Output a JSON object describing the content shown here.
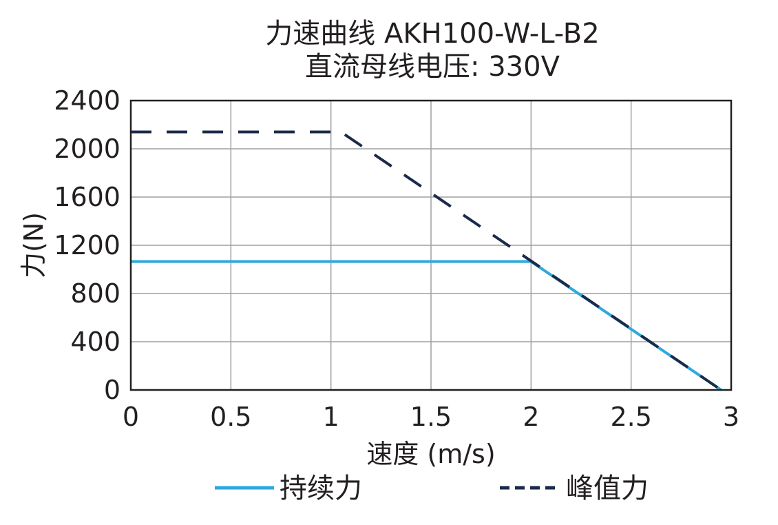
{
  "chart_data": {
    "type": "line",
    "title": "力速曲线 AKH100-W-L-B2",
    "subtitle": "直流母线电压: 330V",
    "xlabel": "速度 (m/s)",
    "ylabel": "力(N)",
    "xlim": [
      0,
      3
    ],
    "ylim": [
      0,
      2400
    ],
    "xticks": [
      "0",
      "0.5",
      "1",
      "1.5",
      "2",
      "2.5",
      "3"
    ],
    "yticks": [
      "0",
      "400",
      "800",
      "1200",
      "1600",
      "2000",
      "2400"
    ],
    "grid": true,
    "legend_position": "bottom",
    "series": [
      {
        "name": "持续力",
        "color": "#2ea8de",
        "style": "solid",
        "x": [
          0,
          2.0,
          2.95
        ],
        "y": [
          1065,
          1065,
          0
        ]
      },
      {
        "name": "峰值力",
        "color": "#1b2a4a",
        "style": "dashed",
        "x": [
          0,
          1.05,
          2.95
        ],
        "y": [
          2140,
          2140,
          0
        ]
      }
    ]
  }
}
